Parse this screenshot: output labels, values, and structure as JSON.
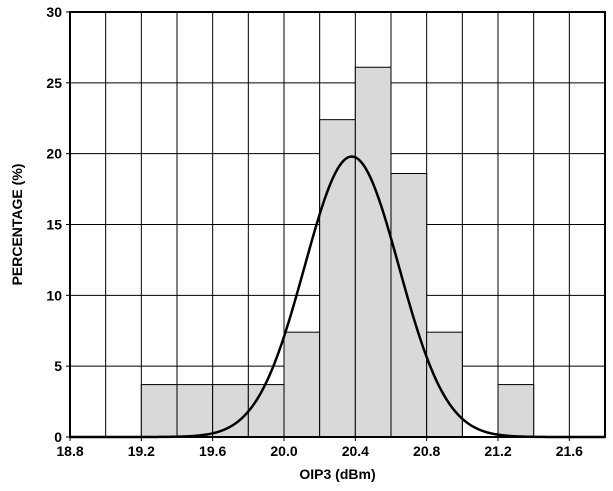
{
  "chart_data": {
    "type": "bar",
    "title": "",
    "xlabel": "OIP3 (dBm)",
    "ylabel": "PERCENTAGE (%)",
    "xlim": [
      18.8,
      21.8
    ],
    "ylim": [
      0,
      30
    ],
    "x_ticks": [
      "18.8",
      "19.2",
      "19.6",
      "20.0",
      "20.4",
      "20.8",
      "21.2",
      "21.6"
    ],
    "y_ticks": [
      "0",
      "5",
      "10",
      "15",
      "20",
      "25",
      "30"
    ],
    "x_grid_step": 0.2,
    "y_grid_step": 5,
    "grid": true,
    "bins": [
      {
        "x0": 19.2,
        "x1": 19.4,
        "value": 3.7
      },
      {
        "x0": 19.4,
        "x1": 19.6,
        "value": 3.7
      },
      {
        "x0": 19.6,
        "x1": 19.8,
        "value": 3.7
      },
      {
        "x0": 19.8,
        "x1": 20.0,
        "value": 3.7
      },
      {
        "x0": 20.0,
        "x1": 20.2,
        "value": 7.4
      },
      {
        "x0": 20.2,
        "x1": 20.4,
        "value": 22.4
      },
      {
        "x0": 20.4,
        "x1": 20.6,
        "value": 26.1
      },
      {
        "x0": 20.6,
        "x1": 20.8,
        "value": 18.6
      },
      {
        "x0": 20.8,
        "x1": 21.0,
        "value": 7.4
      },
      {
        "x0": 21.2,
        "x1": 21.4,
        "value": 3.7
      }
    ],
    "curve": {
      "type": "normal",
      "mean": 20.38,
      "peak": 19.8,
      "sigma": 0.265
    },
    "colors": {
      "bar_fill": "#d9d9d9",
      "bar_stroke": "#000000",
      "grid": "#000000",
      "curve": "#000000"
    }
  }
}
